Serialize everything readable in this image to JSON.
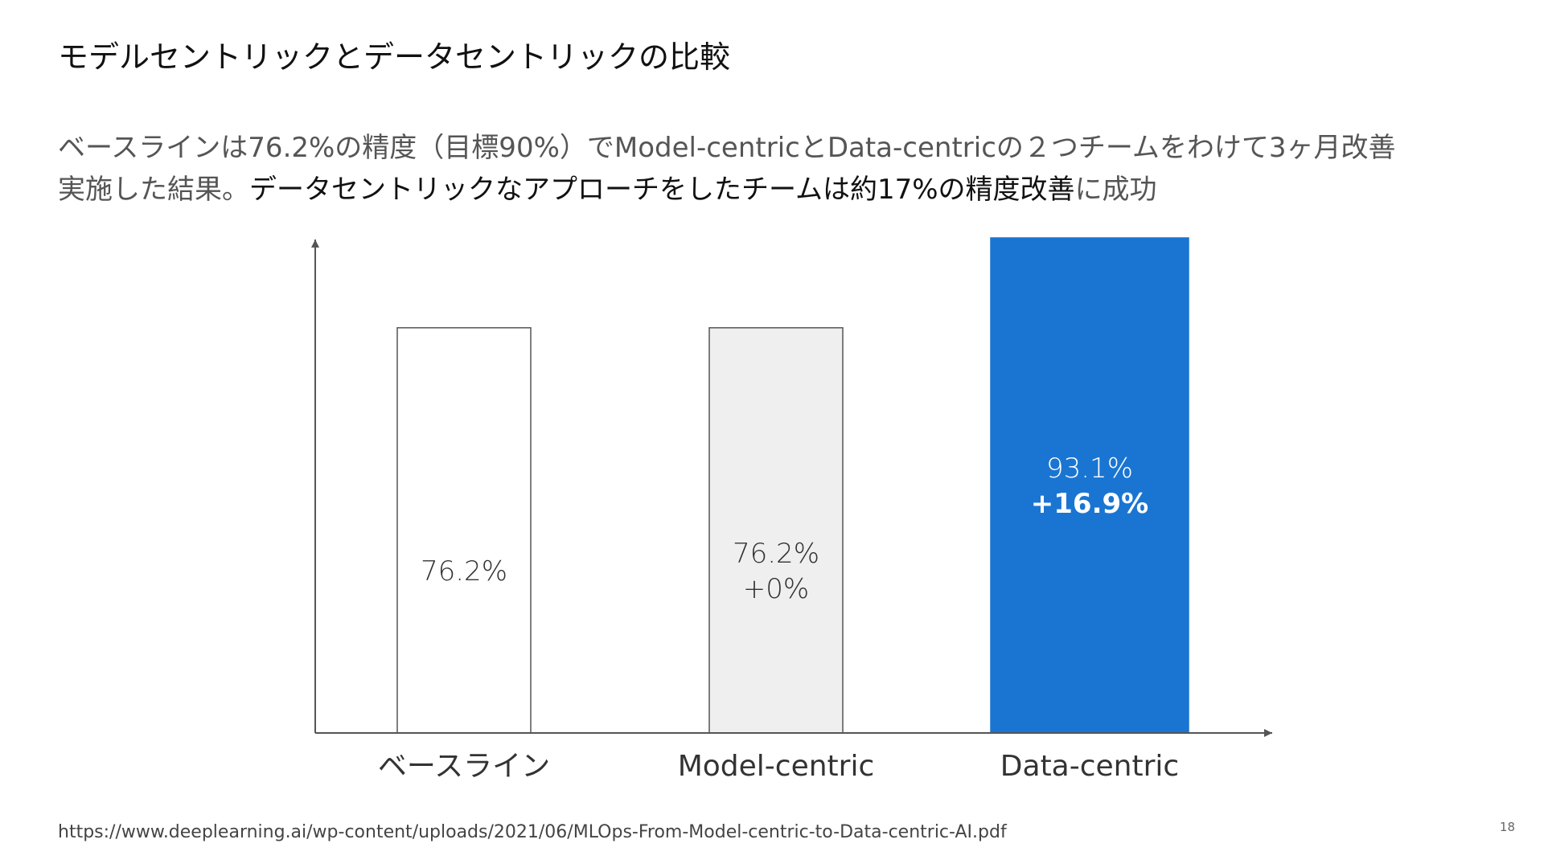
{
  "slide": {
    "title": "モデルセントリックとデータセントリックの比較",
    "description_line1": "ベースラインは76.2%の精度（目標90%）でModel-centricとData-centricの２つチームをわけて3ヶ月改善",
    "description_line2_plain": "実施した結果。",
    "description_line2_emphasis": "データセントリックなアプローチをしたチームは約17%の精度改善",
    "description_line2_tail": "に成功",
    "source_url": "https://www.deeplearning.ai/wp-content/uploads/2021/06/MLOps-From-Model-centric-to-Data-centric-AI.pdf",
    "page_number": "18"
  },
  "chart_data": {
    "type": "bar",
    "categories": [
      "ベースライン",
      "Model-centric",
      "Data-centric"
    ],
    "values": [
      76.2,
      76.2,
      93.1
    ],
    "value_labels": [
      "76.2%",
      "76.2%",
      "93.1%"
    ],
    "delta_labels": [
      "",
      "+0%",
      "+16.9%"
    ],
    "bar_colors": [
      "#ffffff",
      "#efefef",
      "#1a75d2"
    ],
    "bar_stroke": "#555555",
    "label_colors": [
      "#333333",
      "#333333",
      "#ffffff"
    ],
    "axis_color": "#555555",
    "title": "",
    "xlabel": "",
    "ylabel": "",
    "grid": false,
    "ylim": [
      0,
      93.1
    ]
  }
}
